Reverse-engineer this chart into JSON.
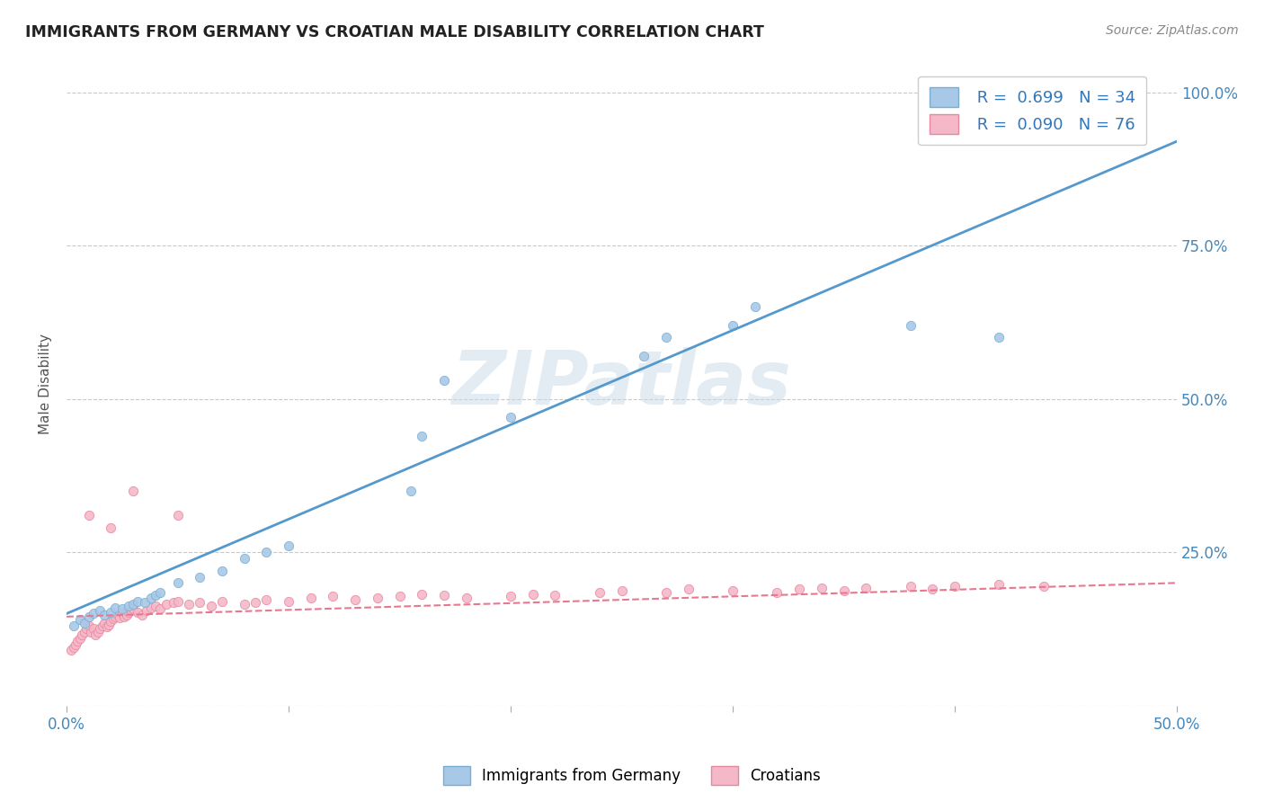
{
  "title": "IMMIGRANTS FROM GERMANY VS CROATIAN MALE DISABILITY CORRELATION CHART",
  "source": "Source: ZipAtlas.com",
  "ylabel": "Male Disability",
  "xlim": [
    0.0,
    0.5
  ],
  "ylim": [
    0.0,
    1.05
  ],
  "watermark": "ZIPatlas",
  "legend_R1": "R =  0.699",
  "legend_N1": "N = 34",
  "legend_R2": "R =  0.090",
  "legend_N2": "N = 76",
  "color_blue": "#a8c8e8",
  "color_blue_edge": "#7aaed0",
  "color_pink": "#f4b8c8",
  "color_pink_edge": "#e888a0",
  "color_line_blue": "#5599cc",
  "color_line_pink": "#e87890",
  "blue_line_x0": 0.0,
  "blue_line_y0": 0.15,
  "blue_line_x1": 0.5,
  "blue_line_y1": 0.92,
  "pink_line_x0": 0.0,
  "pink_line_y0": 0.145,
  "pink_line_x1": 0.5,
  "pink_line_y1": 0.2,
  "blue_scatter_x": [
    0.003,
    0.006,
    0.008,
    0.01,
    0.012,
    0.015,
    0.017,
    0.02,
    0.022,
    0.025,
    0.028,
    0.03,
    0.032,
    0.035,
    0.038,
    0.04,
    0.042,
    0.05,
    0.06,
    0.07,
    0.08,
    0.09,
    0.1,
    0.155,
    0.16,
    0.17,
    0.2,
    0.26,
    0.27,
    0.3,
    0.31,
    0.38,
    0.42,
    0.48
  ],
  "blue_scatter_y": [
    0.13,
    0.14,
    0.135,
    0.145,
    0.15,
    0.155,
    0.148,
    0.152,
    0.16,
    0.158,
    0.162,
    0.165,
    0.17,
    0.168,
    0.175,
    0.18,
    0.185,
    0.2,
    0.21,
    0.22,
    0.24,
    0.25,
    0.26,
    0.35,
    0.44,
    0.53,
    0.47,
    0.57,
    0.6,
    0.62,
    0.65,
    0.62,
    0.6,
    1.0
  ],
  "pink_scatter_x": [
    0.002,
    0.003,
    0.004,
    0.005,
    0.006,
    0.007,
    0.008,
    0.009,
    0.01,
    0.011,
    0.012,
    0.013,
    0.014,
    0.015,
    0.016,
    0.017,
    0.018,
    0.019,
    0.02,
    0.021,
    0.022,
    0.023,
    0.024,
    0.025,
    0.026,
    0.027,
    0.028,
    0.029,
    0.03,
    0.032,
    0.034,
    0.036,
    0.038,
    0.04,
    0.042,
    0.045,
    0.048,
    0.05,
    0.055,
    0.06,
    0.065,
    0.07,
    0.08,
    0.085,
    0.09,
    0.1,
    0.11,
    0.12,
    0.13,
    0.14,
    0.15,
    0.16,
    0.17,
    0.18,
    0.2,
    0.21,
    0.22,
    0.24,
    0.25,
    0.27,
    0.28,
    0.3,
    0.32,
    0.33,
    0.34,
    0.35,
    0.36,
    0.38,
    0.39,
    0.4,
    0.42,
    0.44,
    0.01,
    0.02,
    0.03,
    0.05
  ],
  "pink_scatter_y": [
    0.09,
    0.095,
    0.1,
    0.105,
    0.11,
    0.115,
    0.12,
    0.125,
    0.13,
    0.12,
    0.125,
    0.115,
    0.12,
    0.125,
    0.13,
    0.135,
    0.128,
    0.132,
    0.138,
    0.142,
    0.145,
    0.148,
    0.143,
    0.15,
    0.145,
    0.148,
    0.152,
    0.155,
    0.158,
    0.152,
    0.148,
    0.155,
    0.16,
    0.162,
    0.158,
    0.165,
    0.168,
    0.17,
    0.165,
    0.168,
    0.162,
    0.17,
    0.165,
    0.168,
    0.172,
    0.17,
    0.175,
    0.178,
    0.172,
    0.175,
    0.178,
    0.182,
    0.18,
    0.175,
    0.178,
    0.182,
    0.18,
    0.185,
    0.188,
    0.185,
    0.19,
    0.188,
    0.185,
    0.19,
    0.192,
    0.188,
    0.192,
    0.195,
    0.19,
    0.195,
    0.198,
    0.195,
    0.31,
    0.29,
    0.35,
    0.31
  ]
}
